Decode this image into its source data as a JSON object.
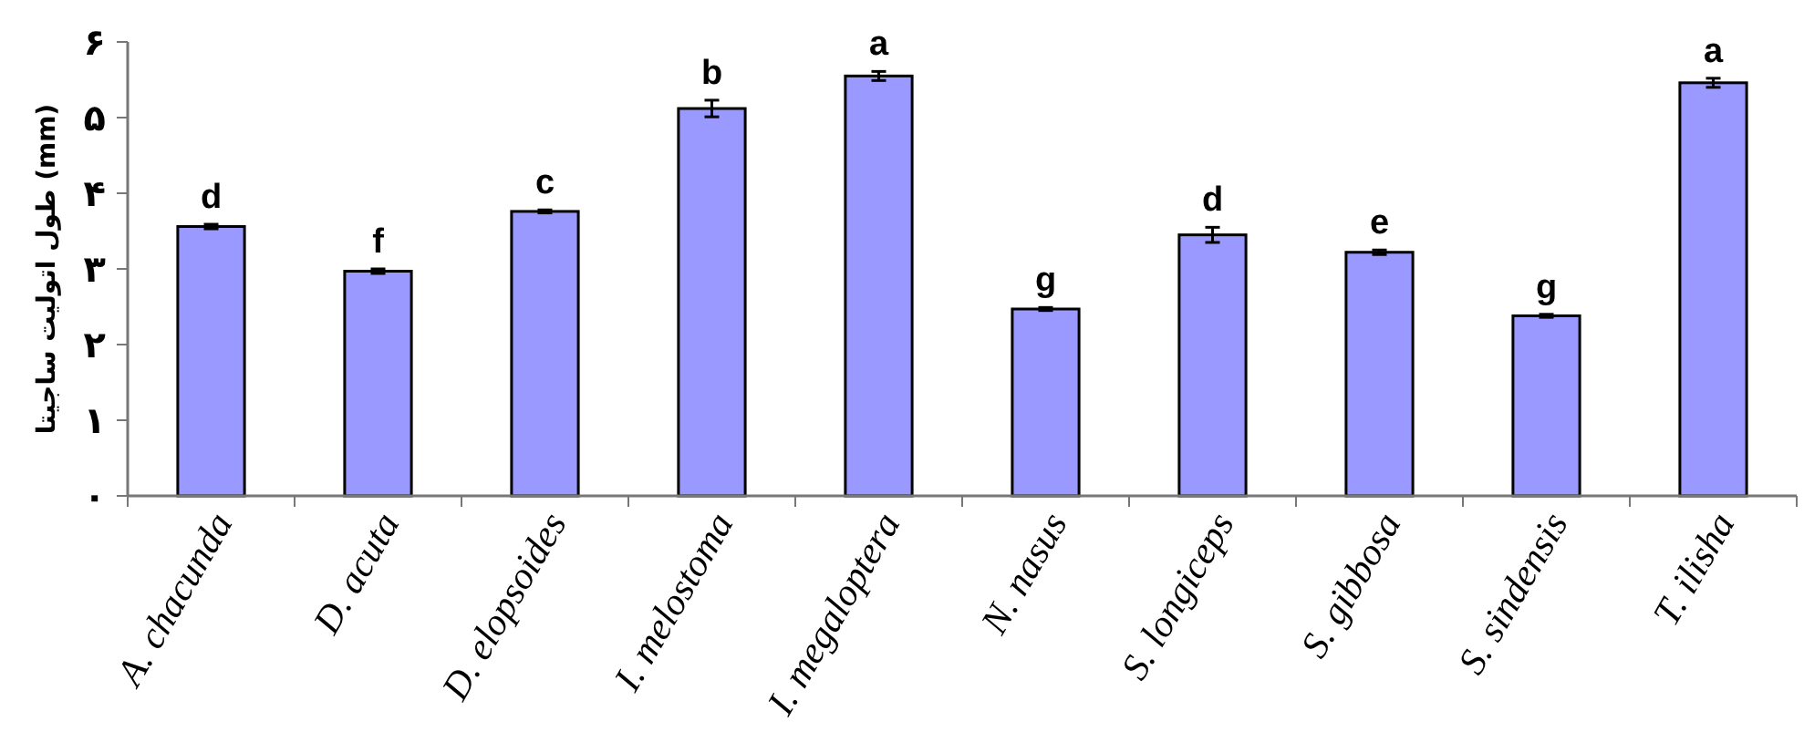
{
  "chart_data": {
    "type": "bar",
    "ylabel": "طول اتولیت ساجیتا (mm)",
    "categories": [
      "A. chacunda",
      "D. acuta",
      "D. elopsoides",
      "I. melostoma",
      "I. megaloptera",
      "N. nasus",
      "S. longiceps",
      "S. gibbosa",
      "S. sindensis",
      "T. ilisha"
    ],
    "values": [
      3.56,
      2.97,
      3.76,
      5.12,
      5.55,
      2.47,
      3.45,
      3.22,
      2.38,
      5.46
    ],
    "errors": [
      0.03,
      0.03,
      0.02,
      0.11,
      0.06,
      0.02,
      0.1,
      0.03,
      0.02,
      0.06
    ],
    "value_labels": [
      "d",
      "f",
      "c",
      "b",
      "a",
      "g",
      "d",
      "e",
      "g",
      "a"
    ],
    "color": "#9999ff",
    "ylim": [
      0,
      6
    ],
    "yticks": [
      {
        "value": 0,
        "label": "۰"
      },
      {
        "value": 1,
        "label": "۱"
      },
      {
        "value": 2,
        "label": "۲"
      },
      {
        "value": 3,
        "label": "۳"
      },
      {
        "value": 4,
        "label": "۴"
      },
      {
        "value": 5,
        "label": "۵"
      },
      {
        "value": 6,
        "label": "۶"
      }
    ],
    "grid": false
  }
}
